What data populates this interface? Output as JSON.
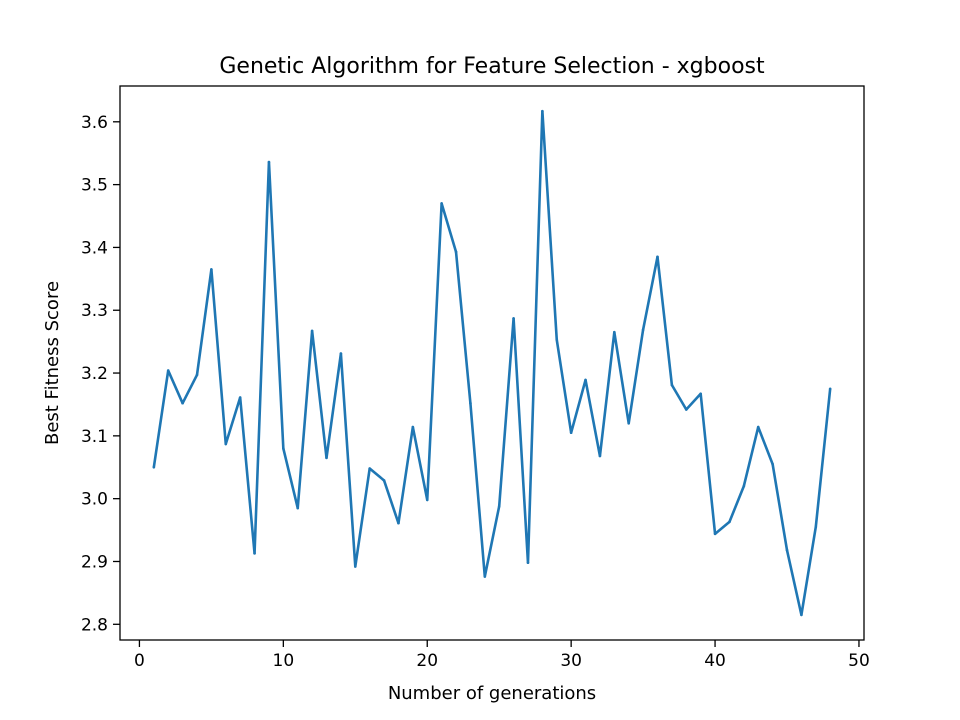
{
  "chart_data": {
    "type": "line",
    "title": "Genetic Algorithm for Feature Selection - xgboost",
    "xlabel": "Number of generations",
    "ylabel": "Best Fitness Score",
    "xlim": [
      -1.35,
      50.35
    ],
    "ylim": [
      2.775,
      3.657
    ],
    "xticks": [
      0,
      10,
      20,
      30,
      40,
      50
    ],
    "xtick_labels": [
      "0",
      "10",
      "20",
      "30",
      "40",
      "50"
    ],
    "yticks": [
      2.8,
      2.9,
      3.0,
      3.1,
      3.2,
      3.3,
      3.4,
      3.5,
      3.6
    ],
    "ytick_labels": [
      "2.8",
      "2.9",
      "3.0",
      "3.1",
      "3.2",
      "3.3",
      "3.4",
      "3.5",
      "3.6"
    ],
    "grid": false,
    "legend": false,
    "line_color": "#1f77b4",
    "series": [
      {
        "x": [
          1,
          2,
          3,
          4,
          5,
          6,
          7,
          8,
          9,
          10,
          11,
          12,
          13,
          14,
          15,
          16,
          17,
          18,
          19,
          20,
          21,
          22,
          23,
          24,
          25,
          26,
          27,
          28,
          29,
          30,
          31,
          32,
          33,
          34,
          35,
          36,
          37,
          38,
          39,
          40,
          41,
          42,
          43,
          44,
          45,
          46,
          47,
          48
        ],
        "values": [
          3.05,
          3.204,
          3.152,
          3.197,
          3.365,
          3.087,
          3.161,
          2.913,
          3.536,
          3.08,
          2.985,
          3.267,
          3.065,
          3.231,
          2.892,
          3.048,
          3.029,
          2.961,
          3.114,
          2.998,
          3.47,
          3.393,
          3.152,
          2.876,
          2.988,
          3.287,
          2.898,
          3.617,
          3.253,
          3.105,
          3.189,
          3.068,
          3.265,
          3.12,
          3.269,
          3.385,
          3.181,
          3.142,
          3.167,
          2.944,
          2.963,
          3.02,
          3.114,
          3.055,
          2.918,
          2.815,
          2.955,
          3.175
        ]
      }
    ]
  }
}
